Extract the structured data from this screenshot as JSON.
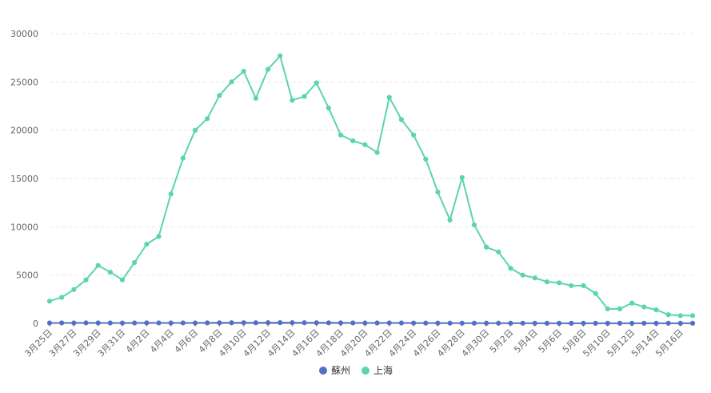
{
  "chart_data": {
    "type": "line",
    "title": "",
    "xlabel": "",
    "ylabel": "",
    "ylim": [
      0,
      30000
    ],
    "yticks": [
      0,
      5000,
      10000,
      15000,
      20000,
      25000,
      30000
    ],
    "grid": true,
    "legend_position": "bottom-center",
    "x": [
      "3月25日",
      "3月26日",
      "3月27日",
      "3月28日",
      "3月29日",
      "3月30日",
      "3月31日",
      "4月1日",
      "4月2日",
      "4月3日",
      "4月4日",
      "4月5日",
      "4月6日",
      "4月7日",
      "4月8日",
      "4月9日",
      "4月10日",
      "4月11日",
      "4月12日",
      "4月13日",
      "4月14日",
      "4月15日",
      "4月16日",
      "4月17日",
      "4月18日",
      "4月19日",
      "4月20日",
      "4月21日",
      "4月22日",
      "4月23日",
      "4月24日",
      "4月25日",
      "4月26日",
      "4月27日",
      "4月28日",
      "4月29日",
      "4月30日",
      "5月1日",
      "5月2日",
      "5月3日",
      "5月4日",
      "5月5日",
      "5月6日",
      "5月7日",
      "5月8日",
      "5月9日",
      "5月10日",
      "5月11日",
      "5月12日",
      "5月13日",
      "5月14日",
      "5月15日",
      "5月16日",
      "5月17日"
    ],
    "x_tick_labels": [
      "3月25日",
      "3月27日",
      "3月29日",
      "3月31日",
      "4月2日",
      "4月4日",
      "4月6日",
      "4月8日",
      "4月10日",
      "4月12日",
      "4月14日",
      "4月16日",
      "4月18日",
      "4月20日",
      "4月22日",
      "4月24日",
      "4月26日",
      "4月28日",
      "4月30日",
      "5月2日",
      "5月4日",
      "5月6日",
      "5月8日",
      "5月10日",
      "5月12日",
      "5月14日",
      "5月16日"
    ],
    "series": [
      {
        "name": "蘇州",
        "color": "#5470c6",
        "values": [
          40,
          45,
          40,
          50,
          45,
          40,
          35,
          40,
          50,
          45,
          40,
          45,
          40,
          50,
          55,
          60,
          65,
          60,
          70,
          75,
          70,
          65,
          60,
          55,
          50,
          45,
          40,
          40,
          45,
          40,
          35,
          30,
          30,
          25,
          25,
          20,
          20,
          20,
          15,
          15,
          10,
          10,
          10,
          10,
          10,
          10,
          10,
          10,
          10,
          10,
          10,
          10,
          10,
          10
        ]
      },
      {
        "name": "上海",
        "color": "#5bd6a7",
        "values": [
          2300,
          2700,
          3500,
          4500,
          6000,
          5300,
          4500,
          6300,
          8200,
          9000,
          13400,
          17100,
          20000,
          21200,
          23600,
          25000,
          26100,
          23300,
          26300,
          27700,
          23100,
          23500,
          24900,
          22300,
          19500,
          18900,
          18500,
          17700,
          23400,
          21100,
          19500,
          17000,
          13600,
          10700,
          15100,
          10200,
          7900,
          7400,
          5700,
          5000,
          4700,
          4300,
          4200,
          3900,
          3900,
          3100,
          1500,
          1500,
          2100,
          1700,
          1400,
          900,
          800,
          800
        ]
      }
    ]
  }
}
